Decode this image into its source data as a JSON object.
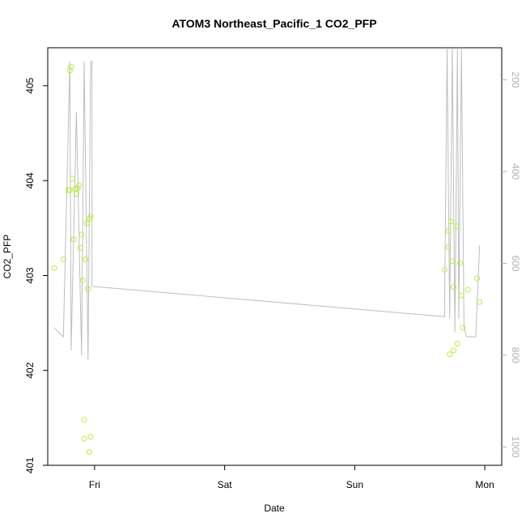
{
  "chart_data": {
    "type": "scatter",
    "title": "ATOM3 Northeast_Pacific_1 CO2_PFP",
    "xlabel": "Date",
    "ylabel": "CO2_PFP",
    "x_tick_labels": [
      "Fri",
      "Sat",
      "Sun",
      "Mon"
    ],
    "xlim": [
      -0.36,
      3.13
    ],
    "ylim": [
      401.0,
      405.4
    ],
    "y_ticks": [
      401,
      402,
      403,
      404,
      405
    ],
    "y2_ticks": [
      200,
      400,
      600,
      800,
      1000
    ],
    "y2lim": [
      130,
      1040
    ],
    "y2_reversed": true,
    "grid": false,
    "colors": {
      "points": "#b5f03c",
      "line": "#bebebe",
      "right_axis": "#b0b0b0"
    },
    "series": [
      {
        "kind": "points",
        "x": [
          -0.31,
          -0.24,
          -0.2,
          -0.19,
          -0.19,
          -0.18,
          -0.17,
          -0.16,
          -0.15,
          -0.14,
          -0.13,
          -0.12,
          -0.11,
          -0.1,
          -0.09,
          -0.08,
          -0.08,
          -0.07,
          -0.06,
          -0.05,
          -0.04,
          -0.04,
          -0.03,
          -0.03,
          2.69,
          2.72,
          2.72,
          2.73,
          2.74,
          2.75,
          2.76,
          2.76,
          2.78,
          2.79,
          2.81,
          2.82,
          2.83,
          2.87,
          2.94,
          2.96
        ],
        "y": [
          403.08,
          403.17,
          403.9,
          403.9,
          405.16,
          405.2,
          404.02,
          403.38,
          403.91,
          403.86,
          403.92,
          403.95,
          403.29,
          403.43,
          402.95,
          401.28,
          401.48,
          403.17,
          403.55,
          402.86,
          403.6,
          401.14,
          401.3,
          403.62,
          403.06,
          403.47,
          403.3,
          402.17,
          403.57,
          403.15,
          402.21,
          402.88,
          403.52,
          402.28,
          403.13,
          402.79,
          402.45,
          402.85,
          402.97,
          402.72
        ]
      },
      {
        "kind": "line",
        "axis": "right",
        "x": [
          -0.31,
          -0.24,
          -0.19,
          -0.18,
          -0.14,
          -0.1,
          -0.08,
          -0.05,
          -0.03,
          -0.02,
          -0.02,
          2.69,
          2.71,
          2.73,
          2.75,
          2.77,
          2.79,
          2.8,
          2.82,
          2.84,
          2.86,
          2.87,
          2.93,
          2.96
        ],
        "y": [
          740,
          760,
          160,
          790,
          270,
          800,
          160,
          810,
          160,
          160,
          650,
          716,
          130,
          720,
          130,
          750,
          130,
          720,
          130,
          740,
          760,
          760,
          760,
          560
        ]
      }
    ]
  }
}
